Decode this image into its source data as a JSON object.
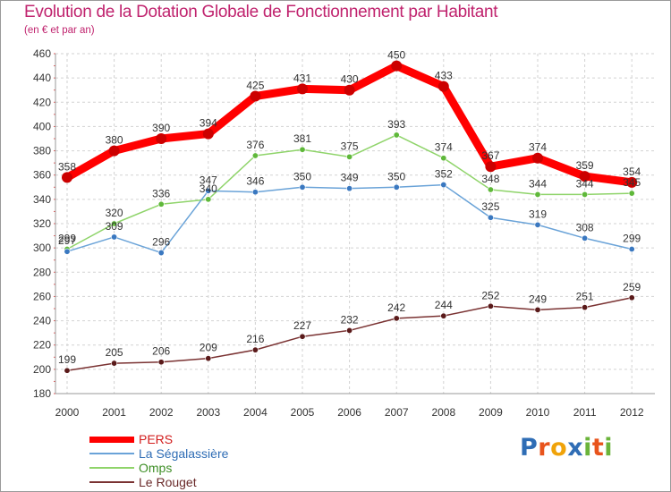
{
  "title": "Evolution de la Dotation Globale de Fonctionnement par Habitant",
  "subtitle": "(en € et par an)",
  "logo": {
    "text": "Proxiti",
    "letters": [
      "P",
      "r",
      "o",
      "x",
      "i",
      "t",
      "i"
    ],
    "colors": [
      "#2f6db5",
      "#e8541c",
      "#f0a30a",
      "#2f6db5",
      "#6bb43a",
      "#e8541c",
      "#6bb43a"
    ]
  },
  "chart_data": {
    "type": "line",
    "title": "Evolution de la Dotation Globale de Fonctionnement par Habitant",
    "subtitle": "(en € et par an)",
    "xlabel": "",
    "ylabel": "",
    "x": [
      "2000",
      "2001",
      "2002",
      "2003",
      "2004",
      "2005",
      "2006",
      "2007",
      "2008",
      "2009",
      "2010",
      "2011",
      "2012"
    ],
    "ylim": [
      180,
      460
    ],
    "yticks": [
      180,
      200,
      220,
      240,
      260,
      280,
      300,
      320,
      340,
      360,
      380,
      400,
      420,
      440,
      460
    ],
    "grid": true,
    "legend_position": "bottom-left",
    "series": [
      {
        "name": "PERS",
        "color": "#ff0000",
        "marker_color": "#cc0000",
        "values": [
          358,
          380,
          390,
          394,
          425,
          431,
          430,
          450,
          433,
          367,
          374,
          359,
          354
        ]
      },
      {
        "name": "La Ségalassière",
        "color": "#6aa3d8",
        "marker_color": "#3a78c0",
        "values": [
          297,
          309,
          296,
          347,
          346,
          350,
          349,
          350,
          352,
          325,
          319,
          308,
          299
        ]
      },
      {
        "name": "Omps",
        "color": "#8fd46a",
        "marker_color": "#5fb83a",
        "values": [
          299,
          320,
          336,
          340,
          376,
          381,
          375,
          393,
          374,
          348,
          344,
          344,
          345
        ]
      },
      {
        "name": "Le Rouget",
        "color": "#7a3232",
        "marker_color": "#5a1a1a",
        "values": [
          199,
          205,
          206,
          209,
          216,
          227,
          232,
          242,
          244,
          252,
          249,
          251,
          259
        ]
      }
    ]
  }
}
